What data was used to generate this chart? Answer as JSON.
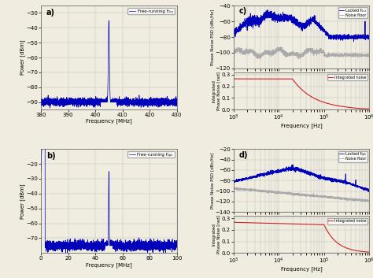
{
  "bg_color": "#f0ece0",
  "panel_a": {
    "label": "a)",
    "legend": "Free-running f₀ₛₓ",
    "xlabel": "Frequency [MHz]",
    "ylabel": "Power [dBm]",
    "xlim": [
      380,
      430
    ],
    "ylim": [
      -95,
      -25
    ],
    "yticks": [
      -90,
      -80,
      -70,
      -60,
      -50,
      -40,
      -30
    ],
    "xticks": [
      380,
      390,
      400,
      410,
      420,
      430
    ],
    "peak_x": 405,
    "peak_y": -35,
    "noise_floor": -90,
    "noise_std": 1.2,
    "line_color": "#0000bb"
  },
  "panel_b": {
    "label": "b)",
    "legend": "Free-running f₀ₚₖ",
    "xlabel": "Frequency [MHz]",
    "ylabel": "Power [dBm]",
    "xlim": [
      0,
      100
    ],
    "ylim": [
      -80,
      -10
    ],
    "yticks": [
      -70,
      -60,
      -50,
      -40,
      -30,
      -20
    ],
    "xticks": [
      0,
      20,
      40,
      60,
      80,
      100
    ],
    "peak_x": 50,
    "peak_y": -25,
    "noise_floor": -75,
    "noise_std": 1.5,
    "line_color": "#0000bb"
  },
  "panel_c_top": {
    "label": "c)",
    "ylabel": "Phase Noise PSD [dBc/Hz]",
    "ylim": [
      -120,
      -40
    ],
    "yticks": [
      -120,
      -100,
      -80,
      -60,
      -40
    ],
    "xlim_log": [
      3,
      6
    ],
    "legend_locked": "Locked f₀ₛₓ",
    "legend_noise": "Noise floor",
    "locked_color": "#0000bb",
    "noise_color": "#aaaaaa"
  },
  "panel_c_bot": {
    "ylabel": "Integrated\nPhase Noise [rad]",
    "ylim": [
      0,
      0.32
    ],
    "yticks": [
      0.0,
      0.1,
      0.2,
      0.3
    ],
    "xlim_log": [
      3,
      6
    ],
    "xlabel": "Frequency [Hz]",
    "legend": "Integrated noise",
    "line_color": "#cc2222"
  },
  "panel_d_top": {
    "label": "d)",
    "ylabel": "Phase Noise PSD [dBc/Hz]",
    "ylim": [
      -140,
      -20
    ],
    "yticks": [
      -140,
      -120,
      -100,
      -80,
      -60,
      -40,
      -20
    ],
    "xlim_log": [
      3,
      6
    ],
    "legend_locked": "Locked f₀ₚₖ",
    "legend_noise": "Noise floor",
    "locked_color": "#0000bb",
    "noise_color": "#aaaaaa"
  },
  "panel_d_bot": {
    "ylabel": "Integrated\nPhase Noise [rad]",
    "ylim": [
      0,
      0.32
    ],
    "yticks": [
      0.0,
      0.1,
      0.2,
      0.3
    ],
    "xlim_log": [
      3,
      6
    ],
    "xlabel": "Frequency [Hz]",
    "legend": "Integrated noise",
    "line_color": "#cc2222"
  }
}
